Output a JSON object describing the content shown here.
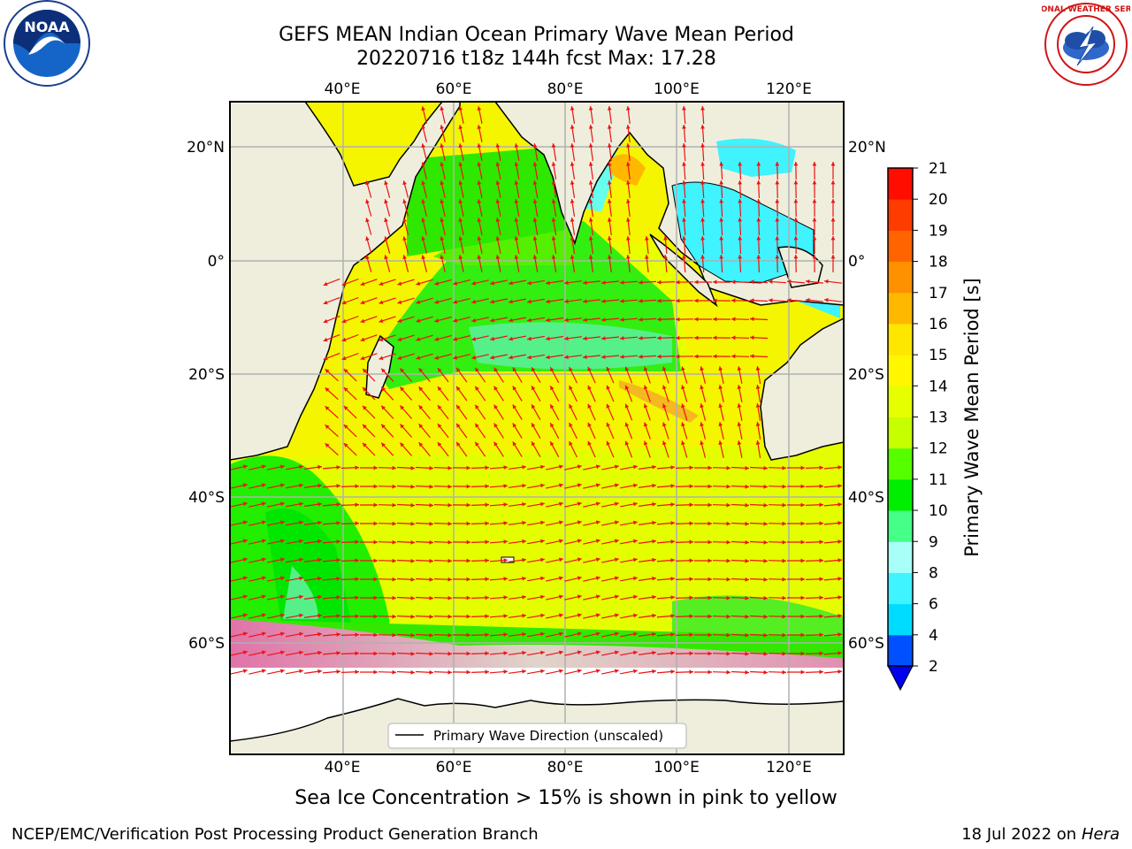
{
  "header": {
    "title_line1": "GEFS MEAN Indian Ocean Primary Wave Mean Period",
    "title_line2": "20220716 t18z 144h fcst   Max: 17.28"
  },
  "logos": {
    "left": "NOAA",
    "right": "NATIONAL WEATHER SERVICE"
  },
  "map": {
    "top_lon_labels": [
      "40°E",
      "60°E",
      "80°E",
      "100°E",
      "120°E"
    ],
    "bottom_lon_labels": [
      "40°E",
      "60°E",
      "80°E",
      "100°E",
      "120°E"
    ],
    "left_lat_labels": [
      "20°N",
      "0°",
      "20°S",
      "40°S",
      "60°S"
    ],
    "right_lat_labels": [
      "20°N",
      "0°",
      "20°S",
      "40°S",
      "60°S"
    ],
    "legend_label": "Primary Wave Direction (unscaled)",
    "colors": {
      "land": "#efeedd",
      "ice": "#ffffff",
      "arrow": "#ee1111",
      "grid": "#b0b0b0"
    }
  },
  "colorbar": {
    "label": "Primary Wave Mean Period [s]",
    "ticks": [
      "2",
      "4",
      "6",
      "8",
      "9",
      "10",
      "11",
      "12",
      "13",
      "14",
      "15",
      "16",
      "17",
      "18",
      "19",
      "20",
      "21"
    ],
    "colors": [
      "#0050ff",
      "#00dcff",
      "#3ff3ff",
      "#a8fff8",
      "#44ff88",
      "#00ee00",
      "#55ff00",
      "#c5ff00",
      "#e5ff00",
      "#fff600",
      "#ffe600",
      "#ffb800",
      "#ff9000",
      "#ff6400",
      "#ff3c00",
      "#ff0e00"
    ],
    "under_color": "#0000ee"
  },
  "caption": "Sea Ice Concentration > 15% is shown in pink to yellow",
  "footer": {
    "left": "NCEP/EMC/Verification Post Processing Product Generation Branch",
    "right_date": "18 Jul 2022 on ",
    "right_host": "Hera"
  }
}
